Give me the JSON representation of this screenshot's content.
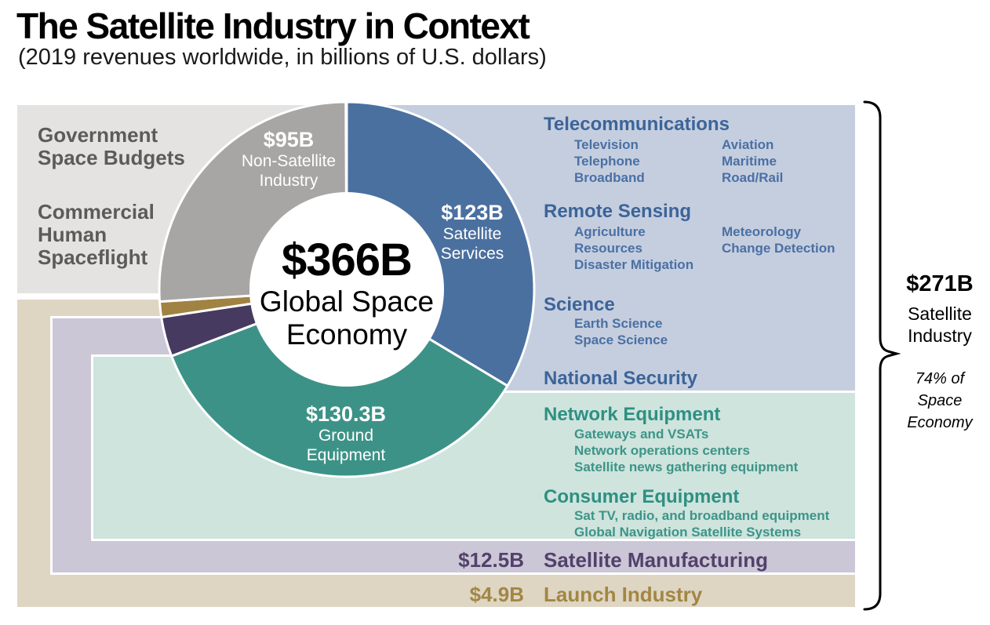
{
  "header": {
    "title": "The Satellite Industry in Context",
    "subtitle": "(2019 revenues worldwide, in billions of U.S. dollars)"
  },
  "chart_data": {
    "type": "pie",
    "variant": "donut",
    "title": "The Satellite Industry in Context",
    "subtitle": "(2019 revenues worldwide, in billions of U.S. dollars)",
    "units": "billions of U.S. dollars",
    "start_angle_deg_clockwise_from_top": 0,
    "total": {
      "value": 366,
      "display": "$366B",
      "label": "Global Space Economy"
    },
    "segments": [
      {
        "key": "satellite-services",
        "name": "Satellite Services",
        "value": 123,
        "display": "$123B",
        "color": "#4a709f"
      },
      {
        "key": "ground-equipment",
        "name": "Ground Equipment",
        "value": 130.3,
        "display": "$130.3B",
        "color": "#3d9287"
      },
      {
        "key": "satellite-manufacturing",
        "name": "Satellite Manufacturing",
        "value": 12.5,
        "display": "$12.5B",
        "color": "#473a60"
      },
      {
        "key": "launch-industry",
        "name": "Launch Industry",
        "value": 4.9,
        "display": "$4.9B",
        "color": "#a08343"
      },
      {
        "key": "non-satellite-industry",
        "name": "Non-Satellite Industry",
        "value": 95,
        "display": "$95B",
        "color": "#a8a6a5"
      }
    ],
    "annotation": {
      "value": "$271B",
      "label": "Satellite Industry",
      "note": "74% of Space Economy"
    }
  },
  "left_panel": {
    "government": "Government\nSpace Budgets",
    "commercial": "Commercial\nHuman\nSpaceflight"
  },
  "donut_labels": {
    "non_satellite": {
      "value": "$95B",
      "name": "Non-Satellite\nIndustry"
    },
    "services": {
      "value": "$123B",
      "name": "Satellite\nServices"
    },
    "ground": {
      "value": "$130.3B",
      "name": "Ground\nEquipment"
    },
    "center": {
      "value": "$366B",
      "name": "Global Space\nEconomy"
    }
  },
  "sections": {
    "telecommunications": {
      "title": "Telecommunications",
      "col1": [
        "Television",
        "Telephone",
        "Broadband"
      ],
      "col2": [
        "Aviation",
        "Maritime",
        "Road/Rail"
      ]
    },
    "remote_sensing": {
      "title": "Remote Sensing",
      "col1": [
        "Agriculture",
        "Resources",
        "Disaster Mitigation"
      ],
      "col2": [
        "Meteorology",
        "Change Detection"
      ]
    },
    "science": {
      "title": "Science",
      "col1": [
        "Earth Science",
        "Space Science"
      ]
    },
    "national_security": {
      "title": "National Security"
    },
    "network_equipment": {
      "title": "Network Equipment",
      "items": [
        "Gateways and VSATs",
        "Network operations centers",
        "Satellite news gathering equipment"
      ]
    },
    "consumer_equipment": {
      "title": "Consumer Equipment",
      "items": [
        "Sat TV, radio, and broadband equipment",
        "Global Navigation Satellite Systems"
      ]
    }
  },
  "rows": {
    "satellite_manufacturing": {
      "value": "$12.5B",
      "title": "Satellite Manufacturing"
    },
    "launch_industry": {
      "value": "$4.9B",
      "title": "Launch Industry"
    }
  },
  "bracket": {
    "value": "$271B",
    "label": "Satellite\nIndustry",
    "note": "74% of\nSpace\nEconomy"
  },
  "colors": {
    "panel_gray": "#e4e3e2",
    "panel_blue": "#c5cedf",
    "panel_green": "#cee4dd",
    "panel_lavender": "#cbc7d7",
    "panel_tan": "#ded6c3",
    "segment_blue": "#4a709f",
    "segment_teal": "#3d9287",
    "segment_purple": "#473a60",
    "segment_gold": "#a08343",
    "segment_gray": "#a8a6a5",
    "text_blue_heading": "#3c6498",
    "text_blue_item": "#4a70a3",
    "text_green_heading": "#2e9082",
    "text_green_item": "#3d9488",
    "text_purple": "#53416b",
    "text_gold": "#a28643",
    "text_gray": "#5c5b5b"
  }
}
